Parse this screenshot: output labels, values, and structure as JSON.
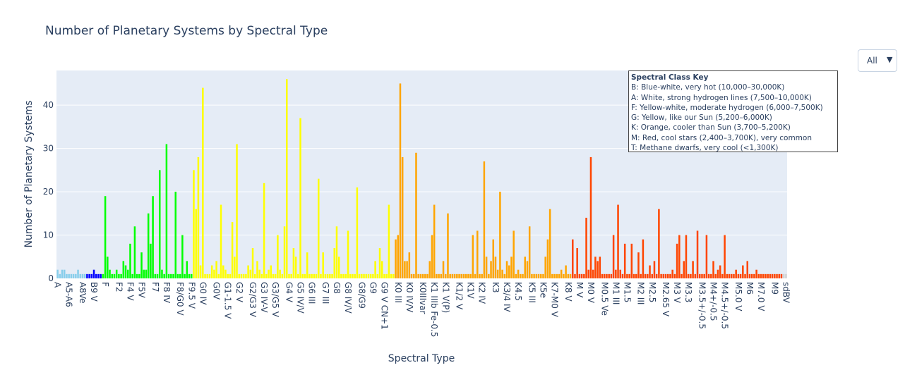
{
  "title": "Number of Planetary Systems by Spectral Type",
  "dropdown": {
    "selected": "All",
    "arrow": "▼"
  },
  "key": {
    "title": "Spectral Class Key",
    "lines": [
      "B: Blue-white, very hot (10,000–30,000K)",
      "A: White, strong hydrogen lines (7,500–10,000K)",
      "F: Yellow-white, moderate hydrogen (6,000–7,500K)",
      "G: Yellow, like our Sun (5,200–6,000K)",
      "K: Orange, cooler than Sun (3,700–5,200K)",
      "M: Red, cool stars (2,400–3,700K), very common",
      "T: Methane dwarfs, very cool (<1,300K)"
    ]
  },
  "colors": {
    "A": "#87ceeb",
    "B": "#0000ff",
    "F": "#00ff00",
    "G": "#ffff00",
    "K": "#ffa500",
    "M": "#ff4500",
    "other": "#d3d3d3"
  },
  "chart_data": {
    "type": "bar",
    "title": "Number of Planetary Systems by Spectral Type",
    "xlabel": "Spectral Type",
    "ylabel": "Number of Planetary  Systems",
    "ylim": [
      0,
      48
    ],
    "yticks": [
      0,
      10,
      20,
      30,
      40
    ],
    "grid": true,
    "tick_labels": [
      "A",
      "A5-A6",
      "A8Ve",
      "B9 V",
      "F",
      "F2",
      "F4 V",
      "F5V",
      "F7",
      "F8 IV",
      "F8/G0 V",
      "F9.5 V",
      "G0 IV",
      "G0V",
      "G1-1.5 V",
      "G2 V",
      "G2/G3 V",
      "G3 IV-V",
      "G3/G5 V",
      "G4 V",
      "G5 IV/V",
      "G6 III",
      "G7 III",
      "G8",
      "G8 IV/V",
      "G8/G9",
      "G9",
      "G9 V CN+1",
      "K0 III",
      "K0 IV/V",
      "K0IIIvar",
      "K1 IIIb Fe-0.5",
      "K1 V(P)",
      "K1/2 V",
      "K1V",
      "K2 IV",
      "K3",
      "K3/4 IV",
      "K4.5",
      "K5 III",
      "K5e",
      "K7-M0 V",
      "K8 V",
      "M V",
      "M0 V",
      "M0.5 Ve",
      "M1 III",
      "M1.5",
      "M2 III",
      "M2.5",
      "M2.65 V",
      "M3 V",
      "M3.3",
      "M3.5+/-0.5",
      "M4+/-0.5",
      "M4.5+/-0.5",
      "M5.0 V",
      "M6",
      "M7.0 V",
      "M9",
      "sdBV"
    ],
    "tick_every": 2,
    "series": [
      {
        "class": "A",
        "values": [
          2,
          1,
          2,
          2,
          1,
          1,
          1,
          1,
          1,
          2,
          1,
          1,
          1
        ]
      },
      {
        "class": "B",
        "values": [
          1,
          1,
          1,
          2,
          1,
          1,
          1
        ]
      },
      {
        "class": "F",
        "values": [
          1,
          19,
          5,
          2,
          1,
          1,
          2,
          1,
          1,
          4,
          3,
          2,
          8,
          1,
          12,
          1,
          1,
          6,
          2,
          2,
          15,
          8,
          19,
          1,
          1,
          25,
          2,
          1,
          31,
          1,
          1,
          1,
          20,
          1,
          1,
          10,
          1,
          4,
          1,
          1
        ]
      },
      {
        "class": "G",
        "values": [
          25,
          16,
          28,
          3,
          44,
          1,
          1,
          1,
          3,
          2,
          4,
          1,
          17,
          3,
          2,
          1,
          1,
          13,
          5,
          31,
          1,
          1,
          1,
          1,
          3,
          2,
          7,
          1,
          4,
          2,
          1,
          22,
          1,
          2,
          3,
          1,
          1,
          10,
          2,
          1,
          12,
          46,
          1,
          1,
          7,
          5,
          1,
          37,
          1,
          1,
          6,
          1,
          1,
          1,
          1,
          23,
          1,
          6,
          1,
          1,
          1,
          1,
          7,
          12,
          5,
          1,
          1,
          1,
          11,
          1,
          1,
          1,
          21,
          1,
          1,
          1,
          1,
          1,
          1,
          1,
          4,
          1,
          7,
          4,
          1,
          1,
          17,
          1,
          1
        ]
      },
      {
        "class": "K",
        "values": [
          9,
          10,
          45,
          28,
          4,
          4,
          6,
          1,
          1,
          29,
          1,
          1,
          1,
          1,
          1,
          4,
          10,
          17,
          1,
          1,
          1,
          4,
          1,
          15,
          1,
          1,
          1,
          1,
          1,
          1,
          1,
          1,
          1,
          1,
          10,
          1,
          11,
          1,
          1,
          27,
          5,
          1,
          4,
          9,
          5,
          2,
          20,
          2,
          1,
          4,
          3,
          5,
          11,
          1,
          2,
          1,
          1,
          5,
          4,
          12,
          1,
          1,
          1,
          1,
          1,
          1,
          5,
          9,
          16,
          1,
          1,
          1,
          1,
          2,
          1,
          3,
          1,
          1
        ]
      },
      {
        "class": "M",
        "values": [
          9,
          1,
          7,
          1,
          1,
          1,
          14,
          2,
          28,
          2,
          5,
          4,
          5,
          1,
          1,
          1,
          1,
          1,
          10,
          2,
          17,
          2,
          1,
          8,
          1,
          1,
          8,
          1,
          1,
          6,
          1,
          9,
          1,
          1,
          3,
          1,
          4,
          1,
          16,
          1,
          1,
          1,
          1,
          1,
          2,
          1,
          8,
          10,
          1,
          4,
          10,
          1,
          1,
          4,
          1,
          11,
          1,
          1,
          1,
          10,
          1,
          1,
          4,
          1,
          2,
          3,
          1,
          10,
          1,
          1,
          1,
          1,
          2,
          1,
          1,
          3,
          1,
          4,
          1,
          1,
          1,
          2,
          1,
          1,
          1,
          1,
          1,
          1,
          1,
          1,
          1,
          1,
          1
        ]
      },
      {
        "class": "other",
        "values": [
          1,
          1
        ]
      }
    ]
  },
  "axis": {
    "x_title": "Spectral Type",
    "y_title": "Number of Planetary  Systems"
  }
}
